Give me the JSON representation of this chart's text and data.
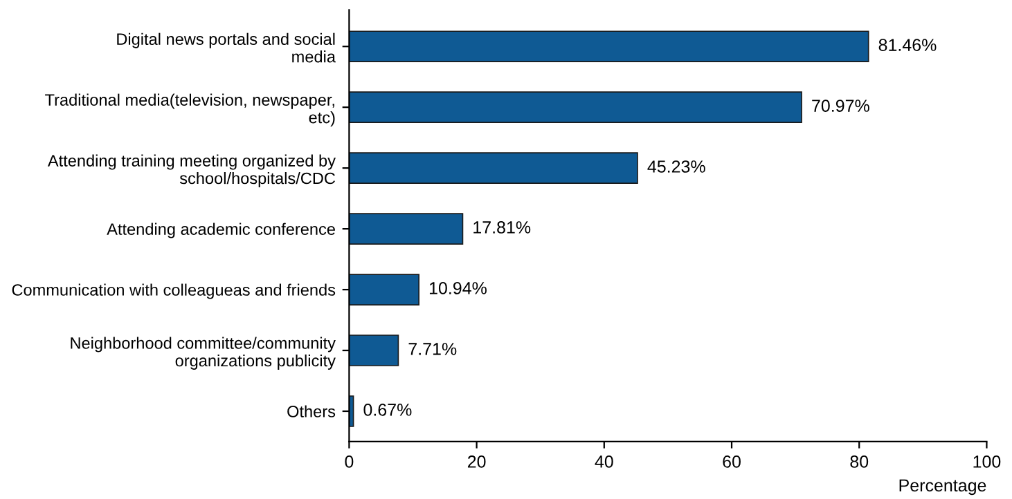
{
  "chart_data": {
    "type": "bar",
    "orientation": "horizontal",
    "categories": [
      "Digital news portals and social\nmedia",
      "Traditional media(television, newspaper,\netc)",
      "Attending training meeting organized by\nschool/hospitals/CDC",
      "Attending academic conference",
      "Communication with colleagueas and friends",
      "Neighborhood committee/community\norganizations publicity",
      "Others"
    ],
    "values": [
      81.46,
      70.97,
      45.23,
      17.81,
      10.94,
      7.71,
      0.67
    ],
    "value_labels": [
      "81.46%",
      "70.97%",
      "45.23%",
      "17.81%",
      "10.94%",
      "7.71%",
      "0.67%"
    ],
    "color": "#0f5a94",
    "xlabel": "Percentage",
    "xlim": [
      0,
      100
    ],
    "xticks": [
      0,
      20,
      40,
      60,
      80,
      100
    ],
    "grid": false,
    "legend": false
  }
}
